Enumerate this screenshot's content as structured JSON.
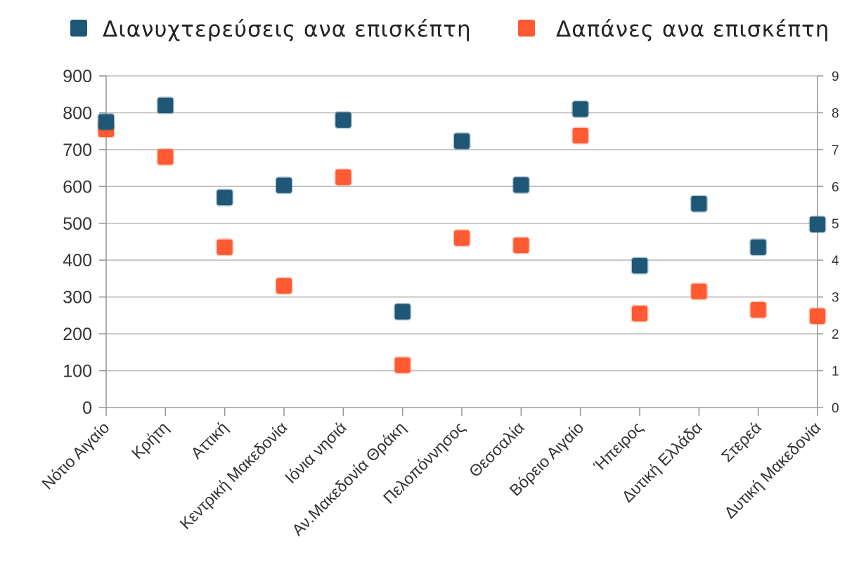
{
  "chart_data": {
    "type": "scatter",
    "categories": [
      "Νότιο Αιγαίο",
      "Κρήτη",
      "Αττική",
      "Κεντρική Μακεδονία",
      "Ιόνια νησιά",
      "Αν.Μακεδονία Θράκη",
      "Πελοπόννησος",
      "Θεσσαλία",
      "Βόρειο Αιγαίο",
      "Ήπειρος",
      "Δυτική Ελλάδα",
      "Στερεά",
      "Δυτική Μακεδονία"
    ],
    "series": [
      {
        "name": "Διανυχτερεύσεις ανα επισκέπτη",
        "axis": "left",
        "color": "#1f5777",
        "values": [
          775,
          820,
          570,
          603,
          780,
          260,
          723,
          604,
          810,
          385,
          553,
          435,
          497
        ]
      },
      {
        "name": "Δαπάνες ανα επισκέπτη",
        "axis": "right",
        "color": "#ff5a32",
        "values": [
          7.55,
          6.8,
          4.35,
          3.3,
          6.25,
          1.15,
          4.6,
          4.4,
          7.38,
          2.55,
          3.15,
          2.65,
          2.48
        ]
      }
    ],
    "y_left": {
      "min": 0,
      "max": 900,
      "ticks": [
        "0",
        "100",
        "200",
        "300",
        "400",
        "500",
        "600",
        "700",
        "800",
        "900"
      ]
    },
    "y_right": {
      "min": 0,
      "max": 9,
      "ticks": [
        "0",
        "1",
        "2",
        "3",
        "4",
        "5",
        "6",
        "7",
        "8",
        "9"
      ]
    },
    "grid": true,
    "legend_position": "top",
    "title": "",
    "xlabel": "",
    "ylabel": ""
  }
}
